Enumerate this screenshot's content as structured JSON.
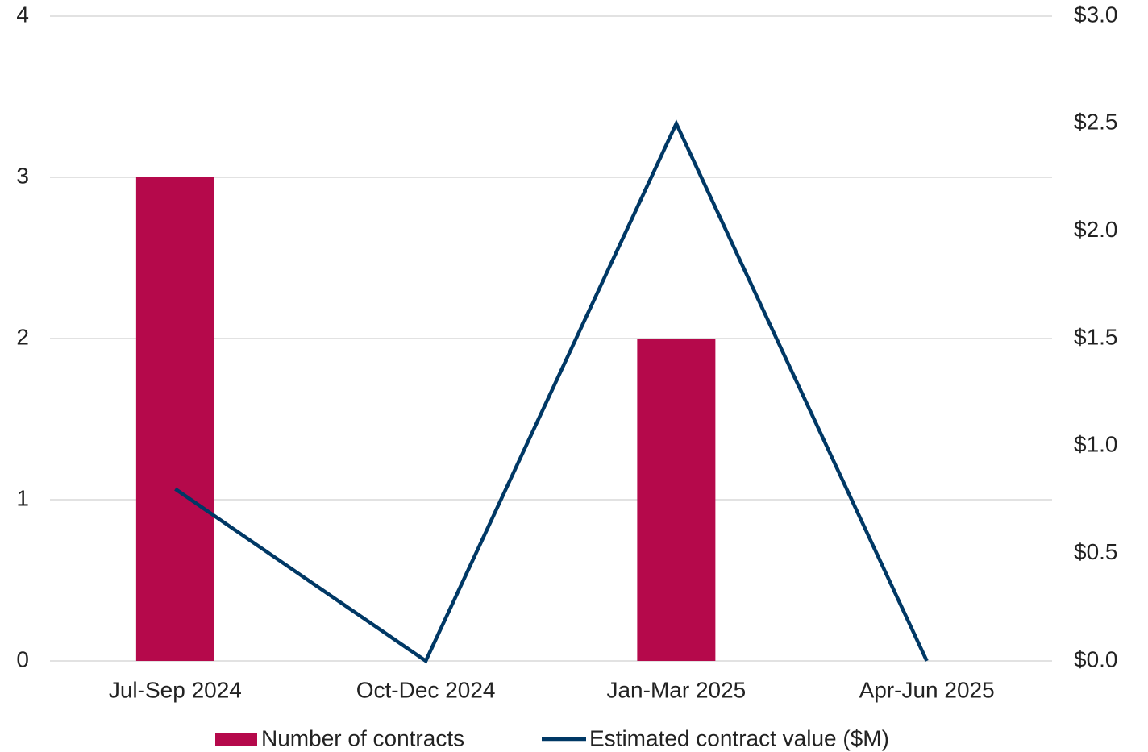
{
  "chart_data": {
    "type": "bar",
    "categories": [
      "Jul-Sep 2024",
      "Oct-Dec 2024",
      "Jan-Mar 2025",
      "Apr-Jun 2025"
    ],
    "series": [
      {
        "name": "Number of contracts",
        "type": "bar",
        "color": "#b5094b",
        "values": [
          3,
          0,
          2,
          0
        ]
      },
      {
        "name": "Estimated contract value ($M)",
        "type": "line",
        "axis": "y2",
        "color": "#003865",
        "values": [
          0.8,
          0,
          2.5,
          0
        ]
      }
    ],
    "ylim": [
      0,
      4
    ],
    "yticks": [
      0,
      1,
      2,
      3,
      4
    ],
    "y2lim": [
      0,
      3
    ],
    "y2ticks": [
      {
        "value": 0,
        "label": "$0.0"
      },
      {
        "value": 0.5,
        "label": "$0.5"
      },
      {
        "value": 1,
        "label": "$1.0"
      },
      {
        "value": 1.5,
        "label": "$1.5"
      },
      {
        "value": 2,
        "label": "$2.0"
      },
      {
        "value": 2.5,
        "label": "$2.5"
      },
      {
        "value": 3,
        "label": "$3.0"
      }
    ],
    "grid": true,
    "legend": "bottom"
  }
}
